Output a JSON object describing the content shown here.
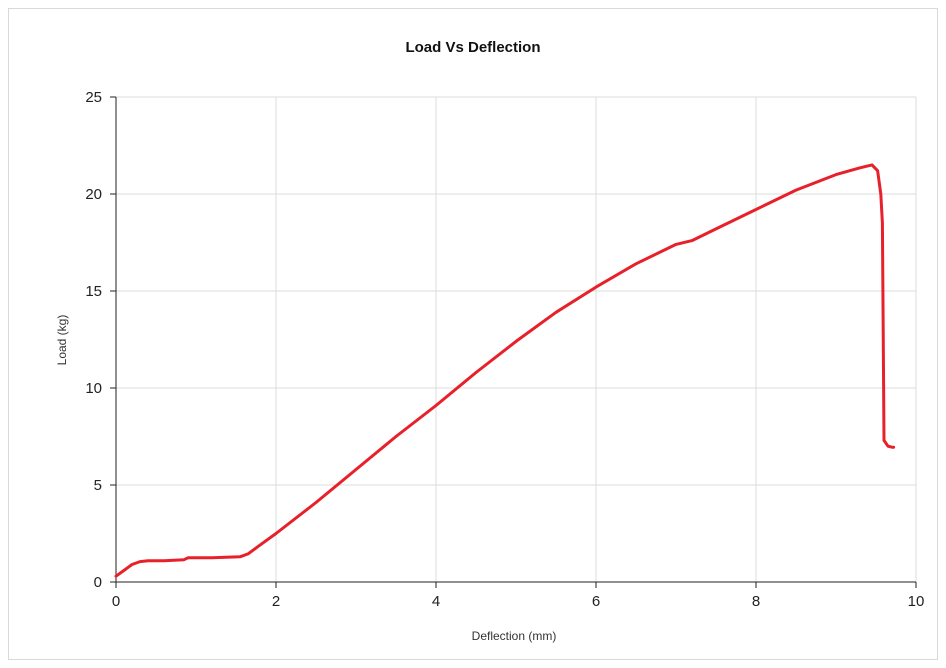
{
  "chart_data": {
    "type": "line",
    "title": "Load Vs Deflection",
    "xlabel": "Deflection (mm)",
    "ylabel": "Load (kg)",
    "xlim": [
      0,
      10
    ],
    "ylim": [
      0,
      25
    ],
    "x_ticks": [
      "0",
      "2",
      "4",
      "6",
      "8",
      "10"
    ],
    "y_ticks": [
      "0",
      "5",
      "10",
      "15",
      "20",
      "25"
    ],
    "grid": true,
    "legend": "none",
    "series": [
      {
        "color": "#e8202a",
        "points": [
          [
            0,
            0.3
          ],
          [
            0.1,
            0.6
          ],
          [
            0.2,
            0.9
          ],
          [
            0.3,
            1.05
          ],
          [
            0.4,
            1.1
          ],
          [
            0.6,
            1.1
          ],
          [
            0.85,
            1.15
          ],
          [
            0.9,
            1.25
          ],
          [
            1.2,
            1.25
          ],
          [
            1.55,
            1.3
          ],
          [
            1.65,
            1.45
          ],
          [
            1.8,
            1.9
          ],
          [
            2.0,
            2.5
          ],
          [
            2.5,
            4.1
          ],
          [
            3.0,
            5.8
          ],
          [
            3.5,
            7.5
          ],
          [
            4.0,
            9.1
          ],
          [
            4.5,
            10.8
          ],
          [
            5.0,
            12.4
          ],
          [
            5.5,
            13.9
          ],
          [
            6.0,
            15.2
          ],
          [
            6.5,
            16.4
          ],
          [
            7.0,
            17.4
          ],
          [
            7.2,
            17.6
          ],
          [
            7.5,
            18.2
          ],
          [
            8.0,
            19.2
          ],
          [
            8.5,
            20.2
          ],
          [
            9.0,
            21.0
          ],
          [
            9.3,
            21.35
          ],
          [
            9.45,
            21.5
          ],
          [
            9.52,
            21.2
          ],
          [
            9.56,
            20.0
          ],
          [
            9.58,
            18.5
          ],
          [
            9.59,
            13.0
          ],
          [
            9.6,
            7.3
          ],
          [
            9.65,
            7.0
          ],
          [
            9.7,
            6.95
          ],
          [
            9.72,
            6.95
          ]
        ]
      }
    ]
  }
}
